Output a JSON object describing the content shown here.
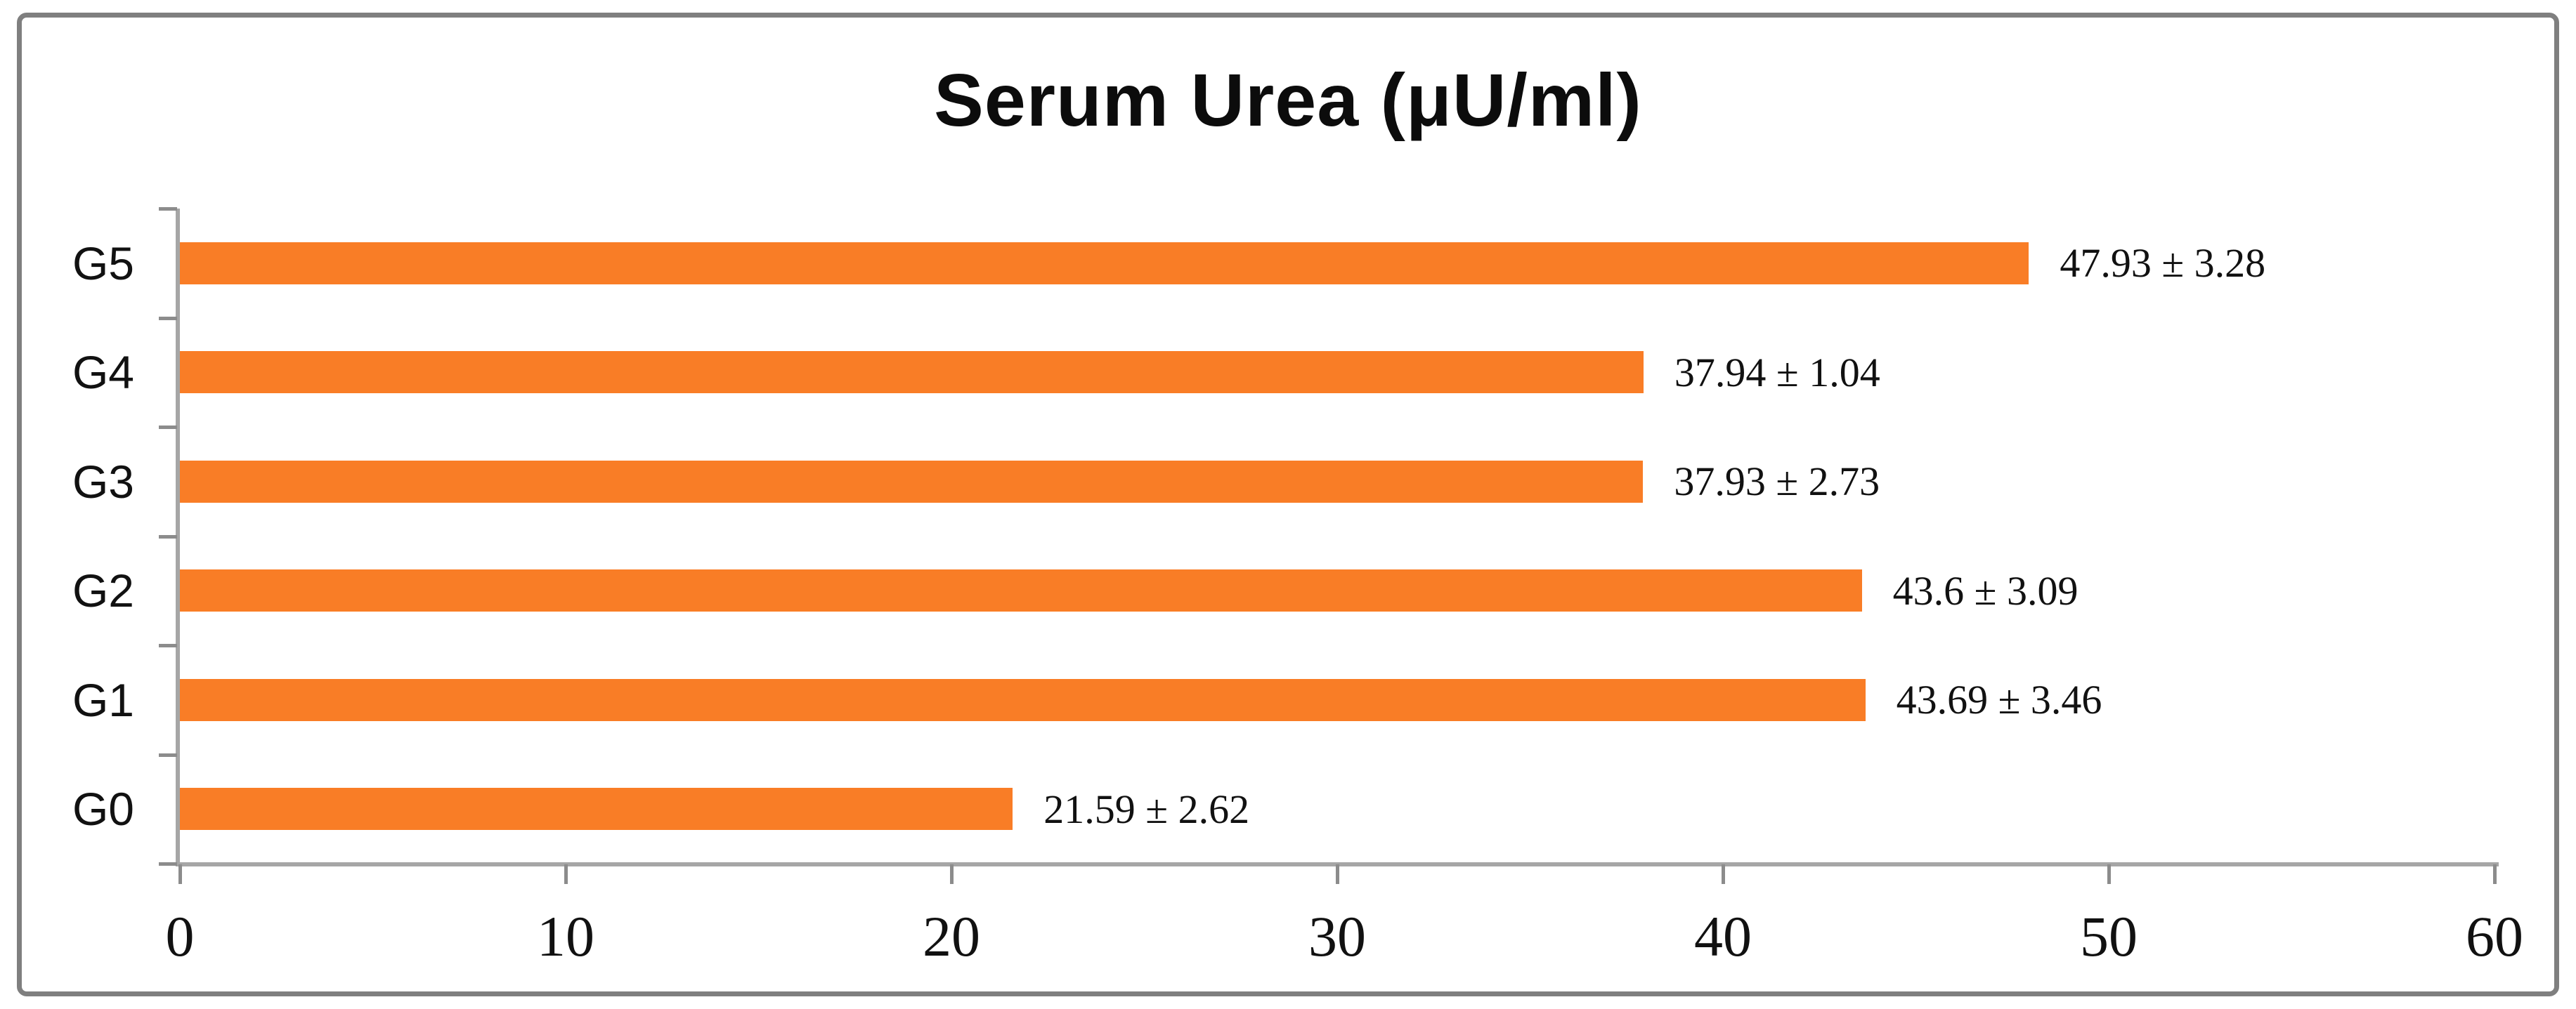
{
  "chart_data": {
    "type": "bar",
    "orientation": "horizontal",
    "title": "Serum Urea (μU/ml)",
    "categories_top_to_bottom": [
      "G5",
      "G4",
      "G3",
      "G2",
      "G1",
      "G0"
    ],
    "values": [
      47.93,
      37.94,
      37.93,
      43.6,
      43.69,
      21.59
    ],
    "errors": [
      3.28,
      1.04,
      2.73,
      3.09,
      3.46,
      2.62
    ],
    "data_labels": [
      "47.93 ± 3.28",
      "37.94 ± 1.04",
      "37.93 ± 2.73",
      "43.6 ± 3.09",
      "43.69 ± 3.46",
      "21.59 ± 2.62"
    ],
    "xlabel": "",
    "ylabel": "",
    "xlim": [
      0,
      60
    ],
    "x_ticks": [
      "0",
      "10",
      "20",
      "30",
      "40",
      "50",
      "60"
    ],
    "grid": false,
    "legend": false,
    "colors": {
      "bar": "#f97d26",
      "axis": "#a6a6a6",
      "tick": "#8c8c8c",
      "frame": "#7f7f7f",
      "text": "#111111"
    }
  }
}
